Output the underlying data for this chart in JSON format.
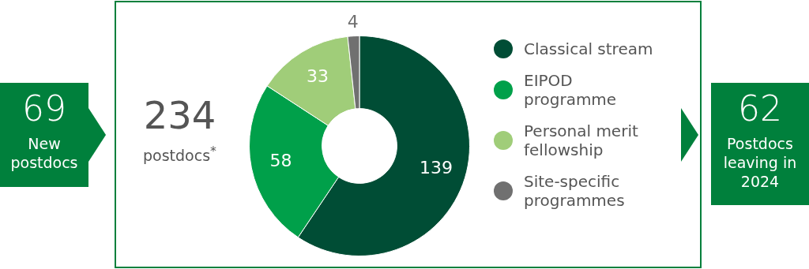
{
  "chart_data": {
    "type": "donut",
    "categories": [
      "Classical stream",
      "EIPOD programme",
      "Personal merit fellowship",
      "Site-specific programmes"
    ],
    "values": [
      139,
      58,
      33,
      4
    ],
    "colors": [
      "#004d35",
      "#00a04a",
      "#a0cd79",
      "#707070"
    ],
    "data_labels": true,
    "legend": "right",
    "annotations": [
      "69",
      "New postdocs",
      "234",
      "postdocs$^{*}$",
      "62",
      "Postdocs leaving in 2024"
    ]
  }
}
